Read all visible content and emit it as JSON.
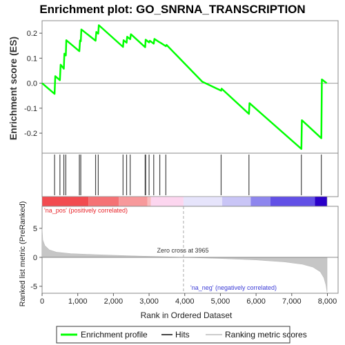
{
  "chart_data": {
    "type": "line",
    "title": "Enrichment plot: GO_SNRNA_TRANSCRIPTION",
    "es_panel": {
      "ylabel": "Enrichment score (ES)",
      "ylim": [
        -0.28,
        0.25
      ],
      "yticks": [
        0.2,
        0.1,
        0.0,
        -0.1,
        -0.2
      ],
      "ytick_labels": [
        "0.2",
        "0.1",
        "0.0",
        "-0.1",
        "-0.2"
      ],
      "series": [
        {
          "name": "Enrichment profile",
          "color": "#00ff00",
          "points": [
            [
              0,
              0.0
            ],
            [
              350,
              -0.043
            ],
            [
              370,
              0.028
            ],
            [
              500,
              0.012
            ],
            [
              520,
              0.074
            ],
            [
              610,
              0.058
            ],
            [
              625,
              0.118
            ],
            [
              665,
              0.111
            ],
            [
              680,
              0.172
            ],
            [
              1045,
              0.128
            ],
            [
              1065,
              0.171
            ],
            [
              1085,
              0.168
            ],
            [
              1100,
              0.215
            ],
            [
              1500,
              0.17
            ],
            [
              1520,
              0.205
            ],
            [
              1575,
              0.198
            ],
            [
              1590,
              0.232
            ],
            [
              2270,
              0.145
            ],
            [
              2285,
              0.172
            ],
            [
              2370,
              0.162
            ],
            [
              2385,
              0.186
            ],
            [
              2470,
              0.176
            ],
            [
              2490,
              0.196
            ],
            [
              2890,
              0.144
            ],
            [
              2905,
              0.174
            ],
            [
              3000,
              0.163
            ],
            [
              3020,
              0.17
            ],
            [
              3130,
              0.158
            ],
            [
              3150,
              0.177
            ],
            [
              3300,
              0.163
            ],
            [
              3320,
              0.162
            ],
            [
              3470,
              0.148
            ],
            [
              3490,
              0.153
            ],
            [
              4490,
              0.006
            ],
            [
              5020,
              -0.03
            ],
            [
              5035,
              -0.022
            ],
            [
              5800,
              -0.123
            ],
            [
              5815,
              -0.08
            ],
            [
              7270,
              -0.263
            ],
            [
              7285,
              -0.148
            ],
            [
              7830,
              -0.22
            ],
            [
              7845,
              0.015
            ],
            [
              7980,
              0.0
            ]
          ]
        }
      ]
    },
    "hits": [
      350,
      500,
      610,
      665,
      1045,
      1085,
      1500,
      1575,
      2270,
      2370,
      2470,
      2890,
      2905,
      3000,
      3130,
      3300,
      3470,
      5020,
      5800,
      7270,
      7830
    ],
    "rank_panel": {
      "ylabel": "Ranked list metric (PreRanked)",
      "ylim": [
        -6.2,
        8.8
      ],
      "yticks": [
        5,
        0,
        -5
      ],
      "ytick_labels": [
        "5",
        "0",
        "-5"
      ],
      "zero_cross_label": "Zero cross at 3965",
      "zero_cross": 3965,
      "pos_label": "'na_pos' (positively correlated)",
      "neg_label": "'na_neg' (negatively correlated)",
      "metric_curve": [
        [
          0,
          5.1
        ],
        [
          20,
          3.0
        ],
        [
          80,
          2.0
        ],
        [
          200,
          1.3
        ],
        [
          400,
          0.9
        ],
        [
          800,
          0.65
        ],
        [
          1500,
          0.45
        ],
        [
          2500,
          0.25
        ],
        [
          3965,
          0.0
        ],
        [
          5000,
          -0.2
        ],
        [
          6000,
          -0.45
        ],
        [
          6800,
          -0.8
        ],
        [
          7300,
          -1.2
        ],
        [
          7600,
          -1.7
        ],
        [
          7800,
          -2.5
        ],
        [
          7900,
          -3.5
        ],
        [
          7960,
          -4.8
        ],
        [
          7990,
          -6.0
        ]
      ]
    },
    "xlabel": "Rank in Ordered Dataset",
    "xlim": [
      0,
      8300
    ],
    "xticks": [
      0,
      1000,
      2000,
      3000,
      4000,
      5000,
      6000,
      7000,
      8000
    ],
    "xtick_labels": [
      "0",
      "1,000",
      "2,000",
      "3,000",
      "4,000",
      "5,000",
      "6,000",
      "7,000",
      "8,000"
    ],
    "n_genes": 7990,
    "color_bar": [
      {
        "from": 0,
        "to": 1300,
        "color": "#f24b50"
      },
      {
        "from": 1300,
        "to": 2150,
        "color": "#f57275"
      },
      {
        "from": 2150,
        "to": 2950,
        "color": "#f7999b"
      },
      {
        "from": 2950,
        "to": 3050,
        "color": "#f9bbbd"
      },
      {
        "from": 3050,
        "to": 3965,
        "color": "#fcd6ef"
      },
      {
        "from": 3965,
        "to": 5050,
        "color": "#e6e4fb"
      },
      {
        "from": 5050,
        "to": 5850,
        "color": "#c9c5f6"
      },
      {
        "from": 5850,
        "to": 6400,
        "color": "#8e86ee"
      },
      {
        "from": 6400,
        "to": 7650,
        "color": "#6250e6"
      },
      {
        "from": 7650,
        "to": 7990,
        "color": "#2a00c9"
      }
    ],
    "legend": [
      {
        "label": "Enrichment profile",
        "color": "#00ff00"
      },
      {
        "label": "Hits",
        "color": "#444444"
      },
      {
        "label": "Ranking metric scores",
        "color": "#cccccc"
      }
    ]
  }
}
